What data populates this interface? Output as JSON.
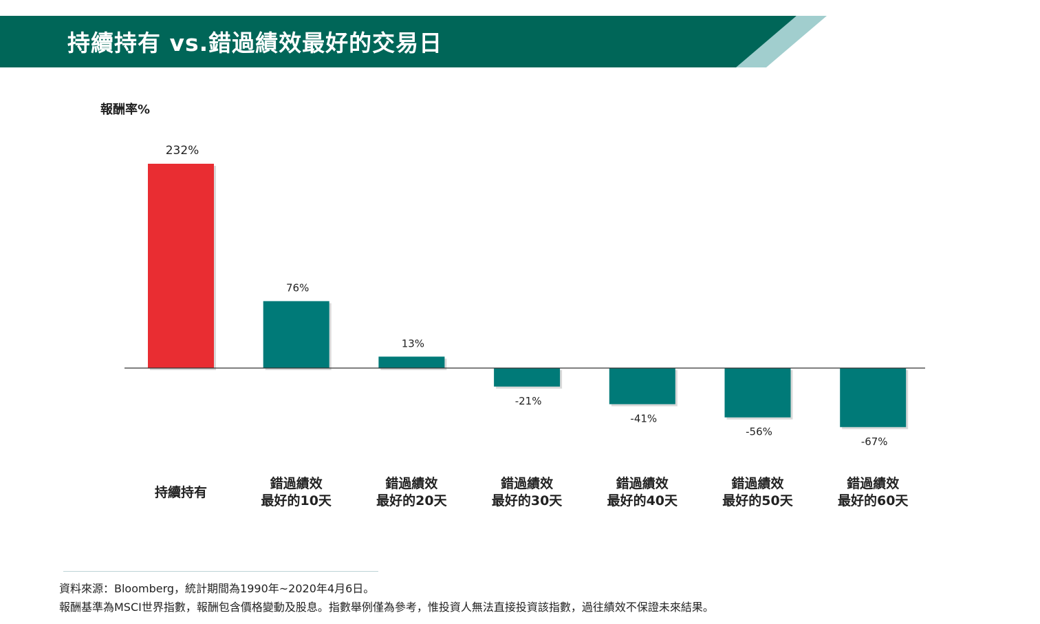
{
  "header": {
    "title": "持續持有 vs.錯過績效最好的交易日",
    "band_color": "#006658",
    "stripe_color": "#A1CECE"
  },
  "chart_data": {
    "type": "bar",
    "title": "持續持有 vs.錯過績效最好的交易日",
    "ylabel": "報酬率%",
    "xlabel": "",
    "categories": [
      [
        "持續持有"
      ],
      [
        "錯過績效",
        "最好的10天"
      ],
      [
        "錯過績效",
        "最好的20天"
      ],
      [
        "錯過績效",
        "最好的30天"
      ],
      [
        "錯過績效",
        "最好的40天"
      ],
      [
        "錯過績效",
        "最好的50天"
      ],
      [
        "錯過績效",
        "最好的60天"
      ]
    ],
    "values": [
      232,
      76,
      13,
      -21,
      -41,
      -56,
      -67
    ],
    "data_labels": [
      "232%",
      "76%",
      "13%",
      "-21%",
      "-41%",
      "-56%",
      "-67%"
    ],
    "colors": [
      "#E92D32",
      "#007A78",
      "#007A78",
      "#007A78",
      "#007A78",
      "#007A78",
      "#007A78"
    ],
    "grid": false,
    "y_axis_shown": false
  },
  "footnotes": {
    "source": "資料來源：Bloomberg，統計期間為1990年~2020年4月6日。",
    "disclaimer": "報酬基準為MSCI世界指數，報酬包含價格變動及股息。指數舉例僅為參考，惟投資人無法直接投資該指數，過往績效不保證未來結果。"
  }
}
